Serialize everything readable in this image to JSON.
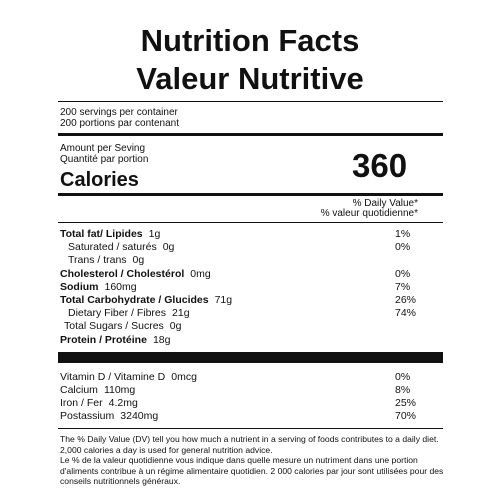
{
  "header": {
    "title": "Nutrition Facts",
    "title_fr": "Valeur Nutritive"
  },
  "servings": [
    "200 servings per container",
    "200 portions par contenant"
  ],
  "amount": [
    "Amount per Seving",
    "Quantité par portion"
  ],
  "calories": {
    "label": "Calories",
    "value": 360
  },
  "daily_value_header": [
    "% Daily Value*",
    "% valeur quotidienne*"
  ],
  "nutrients": [
    {
      "name": "Total fat/ Lipides",
      "amount": "1g",
      "dv": "1%"
    },
    {
      "name": "Saturated / saturés",
      "amount": "0g",
      "dv": "0%"
    },
    {
      "name": "Trans / trans",
      "amount": "0g"
    },
    {
      "name": "Cholesterol / Cholestérol",
      "amount": "0mg",
      "dv": "0%"
    },
    {
      "name": "Sodium",
      "amount": "160mg",
      "dv": "7%"
    },
    {
      "name": "Total Carbohydrate / Glucides",
      "amount": "71g",
      "dv": "26%"
    },
    {
      "name": "Dietary Fiber / Fibres",
      "amount": "21g",
      "dv": "74%"
    },
    {
      "name": "Total Sugars / Sucres",
      "amount": "0g"
    },
    {
      "name": "Protein / Protéine",
      "amount": "18g"
    }
  ],
  "vitamins": [
    {
      "name": "Vitamin D / Vitamine D",
      "amount": "0mcg",
      "dv": "0%"
    },
    {
      "name": "Calcium",
      "amount": "110mg",
      "dv": "8%"
    },
    {
      "name": "Iron / Fer",
      "amount": "4.2mg",
      "dv": "25%"
    },
    {
      "name": "Postassium",
      "amount": "3240mg",
      "dv": "70%"
    }
  ],
  "footnote": [
    "The % Daily Value (DV) tell you how much a nutrient in a serving of foods contributes to a daily diet.",
    "2,000 calories a day is used for general nutrition advice.",
    "Le % de la valeur quotidienne vous indique dans quelle mesure un nutriment dans une portion",
    "d'aliments contribue à un régime alimentaire quotidien. 2 000 calories par jour sont utilisées pour des",
    "conseils nutritionnels généraux."
  ]
}
